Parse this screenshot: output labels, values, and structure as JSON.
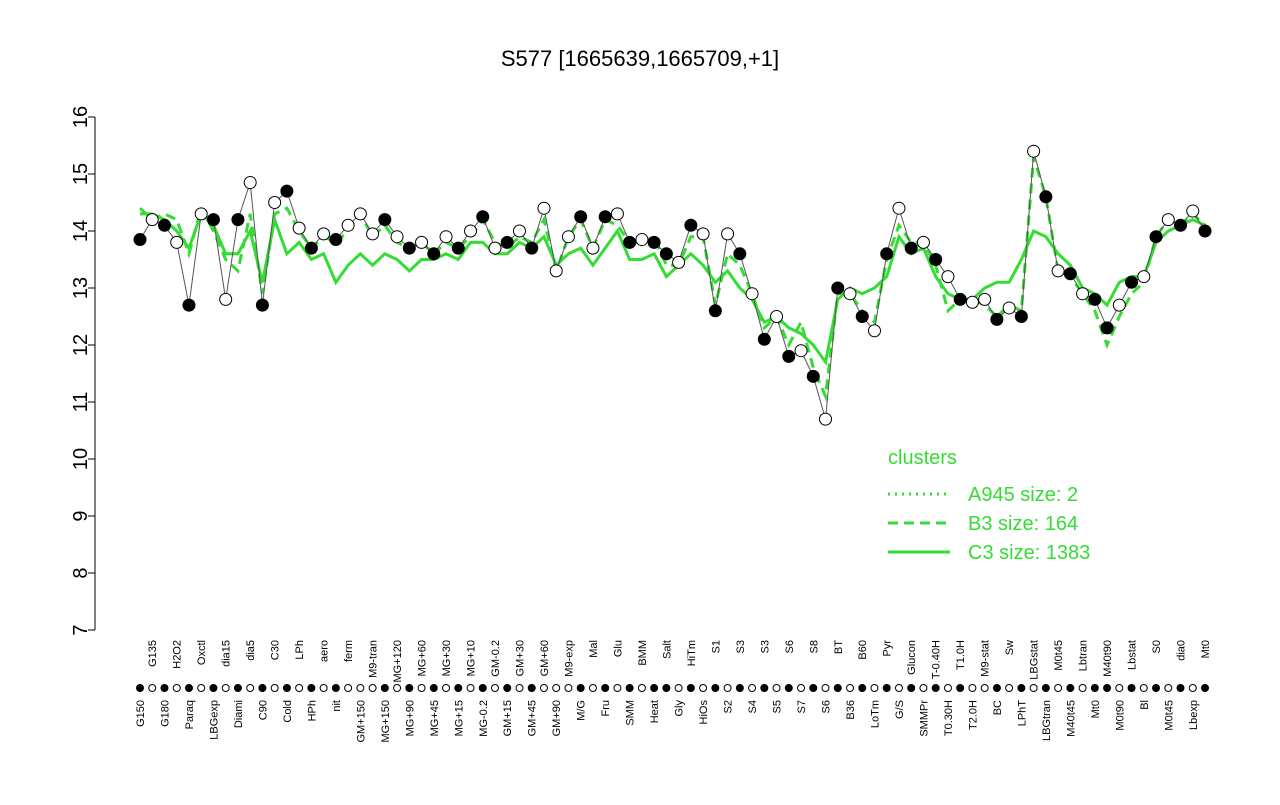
{
  "chart_data": {
    "type": "scatter",
    "title": "S577 [1665639,1665709,+1]",
    "categories": [
      "G150",
      "G135",
      "G180",
      "H2O2",
      "Paraq",
      "Oxctl",
      "LBGexp",
      "dia15",
      "Diami",
      "dia5",
      "C90",
      "C30",
      "Cold",
      "LPh",
      "HPh",
      "aero",
      "nit",
      "ferm",
      "GM+150",
      "M9-tran",
      "MG+150",
      "MG+120",
      "MG+90",
      "MG+60",
      "MG+45",
      "MG+30",
      "MG+15",
      "MG+10",
      "MG-0.2",
      "GM-0.2",
      "GM+15",
      "GM+30",
      "GM+45",
      "GM+60",
      "GM+90",
      "M9-exp",
      "M/G",
      "Mal",
      "Fru",
      "Glu",
      "SMM",
      "BMM",
      "Heat",
      "Salt",
      "Gly",
      "HiTm",
      "HiOs",
      "S1",
      "S2",
      "S3",
      "S4",
      "S3",
      "S5",
      "S6",
      "S7",
      "S8",
      "S6",
      "BT",
      "B36",
      "B60",
      "LoTm",
      "Pyr",
      "G/S",
      "Glucon",
      "SMMPr",
      "T-0.40H",
      "T0.30H",
      "T1.0H",
      "T2.0H",
      "M9-stat",
      "BC",
      "Sw",
      "LPhT",
      "LBGstat",
      "LBGtran",
      "M0t45",
      "M40t45",
      "Lbtran",
      "Mt0",
      "M40t90",
      "M0t90",
      "Lbstat",
      "Bl",
      "S0",
      "M0t45",
      "dia0",
      "Lbexp",
      "Mt0"
    ],
    "values": [
      13.85,
      14.2,
      14.1,
      13.8,
      12.7,
      14.3,
      14.2,
      12.8,
      14.2,
      14.85,
      12.7,
      14.5,
      14.7,
      14.05,
      13.7,
      13.95,
      13.85,
      14.1,
      14.3,
      13.95,
      14.2,
      13.9,
      13.7,
      13.8,
      13.6,
      13.9,
      13.7,
      14.0,
      14.25,
      13.7,
      13.8,
      14.0,
      13.7,
      14.4,
      13.3,
      13.9,
      14.25,
      13.7,
      14.25,
      14.3,
      13.8,
      13.85,
      13.8,
      13.6,
      13.45,
      14.1,
      13.95,
      12.6,
      13.95,
      13.6,
      12.9,
      12.1,
      12.5,
      11.8,
      11.9,
      11.45,
      10.7,
      13.0,
      12.9,
      12.5,
      12.25,
      13.6,
      14.4,
      13.7,
      13.8,
      13.5,
      13.2,
      12.8,
      12.75,
      12.8,
      12.45,
      12.65,
      12.5,
      15.4,
      14.6,
      13.3,
      13.25,
      12.9,
      12.8,
      12.3,
      12.7,
      13.1,
      13.2,
      13.9,
      14.2,
      14.1,
      14.35,
      14.0
    ],
    "point_colors": [
      "#000000",
      "#ffffff",
      "#000000",
      "#ffffff",
      "#000000",
      "#ffffff",
      "#000000",
      "#ffffff",
      "#000000",
      "#ffffff",
      "#000000",
      "#ffffff",
      "#000000",
      "#ffffff",
      "#000000",
      "#ffffff",
      "#000000",
      "#ffffff",
      "#ffffff",
      "#ffffff",
      "#000000",
      "#ffffff",
      "#000000",
      "#ffffff",
      "#000000",
      "#ffffff",
      "#000000",
      "#ffffff",
      "#000000",
      "#ffffff",
      "#000000",
      "#ffffff",
      "#000000",
      "#ffffff",
      "#ffffff",
      "#ffffff",
      "#000000",
      "#ffffff",
      "#000000",
      "#ffffff",
      "#000000",
      "#ffffff",
      "#000000",
      "#000000",
      "#ffffff",
      "#000000",
      "#ffffff",
      "#000000",
      "#ffffff",
      "#000000",
      "#ffffff",
      "#000000",
      "#ffffff",
      "#000000",
      "#ffffff",
      "#000000",
      "#ffffff",
      "#000000",
      "#ffffff",
      "#000000",
      "#ffffff",
      "#000000",
      "#ffffff",
      "#000000",
      "#ffffff",
      "#000000",
      "#ffffff",
      "#000000",
      "#ffffff",
      "#ffffff",
      "#000000",
      "#ffffff",
      "#000000",
      "#ffffff",
      "#000000",
      "#ffffff",
      "#000000",
      "#ffffff",
      "#000000",
      "#000000",
      "#ffffff",
      "#000000",
      "#ffffff",
      "#000000",
      "#ffffff",
      "#000000",
      "#ffffff",
      "#000000"
    ],
    "lines": [
      {
        "color": "#33dd33",
        "style": "dashed",
        "values": [
          14.4,
          14.2,
          14.3,
          14.2,
          13.6,
          14.4,
          14.0,
          13.5,
          13.3,
          14.3,
          12.9,
          14.3,
          14.4,
          14.0,
          13.7,
          13.9,
          13.8,
          14.0,
          14.3,
          13.9,
          14.1,
          13.8,
          13.7,
          13.8,
          13.6,
          13.8,
          13.7,
          13.9,
          14.2,
          13.8,
          13.7,
          13.9,
          13.8,
          14.2,
          13.3,
          13.9,
          14.2,
          13.7,
          14.2,
          14.1,
          13.8,
          13.8,
          13.9,
          13.4,
          13.4,
          13.9,
          13.9,
          12.7,
          13.6,
          13.4,
          12.9,
          12.3,
          12.5,
          12.0,
          12.4,
          11.6,
          11.1,
          12.9,
          12.9,
          12.6,
          12.4,
          13.5,
          14.1,
          13.8,
          13.8,
          13.4,
          12.6,
          12.8,
          12.8,
          12.7,
          12.5,
          12.7,
          12.6,
          15.3,
          14.6,
          13.3,
          13.2,
          12.9,
          12.6,
          12.0,
          12.5,
          12.9,
          13.1,
          13.9,
          14.2,
          14.1,
          14.3,
          14.1
        ]
      },
      {
        "color": "#33dd33",
        "style": "solid",
        "values": [
          14.3,
          14.3,
          14.2,
          14.0,
          13.7,
          14.3,
          14.1,
          13.6,
          13.6,
          14.0,
          13.1,
          14.2,
          13.6,
          13.8,
          13.5,
          13.6,
          13.1,
          13.4,
          13.6,
          13.4,
          13.6,
          13.5,
          13.3,
          13.5,
          13.5,
          13.6,
          13.5,
          13.8,
          13.8,
          13.6,
          13.6,
          13.8,
          13.7,
          13.9,
          13.4,
          13.6,
          13.7,
          13.4,
          13.7,
          14.0,
          13.5,
          13.5,
          13.6,
          13.2,
          13.4,
          13.6,
          13.4,
          13.1,
          13.3,
          13.0,
          12.8,
          12.4,
          12.5,
          12.3,
          12.2,
          12.0,
          11.7,
          12.8,
          13.0,
          12.9,
          13.0,
          13.2,
          13.9,
          13.6,
          13.7,
          13.2,
          12.9,
          12.8,
          12.8,
          13.0,
          13.1,
          13.1,
          13.5,
          14.0,
          13.9,
          13.6,
          13.4,
          13.0,
          12.9,
          12.7,
          13.1,
          13.2,
          13.2,
          13.8,
          14.0,
          14.1,
          14.2,
          14.1
        ]
      }
    ],
    "legend": {
      "title": "clusters",
      "entries": [
        "A945 size: 2",
        "B3 size: 164",
        "C3 size: 1383"
      ],
      "styles": [
        "dotted",
        "dashed",
        "solid"
      ],
      "color": "#33dd33",
      "position": "right"
    },
    "ylim": [
      7,
      16
    ],
    "yticks": [
      7,
      8,
      9,
      10,
      11,
      12,
      13,
      14,
      15,
      16
    ]
  }
}
